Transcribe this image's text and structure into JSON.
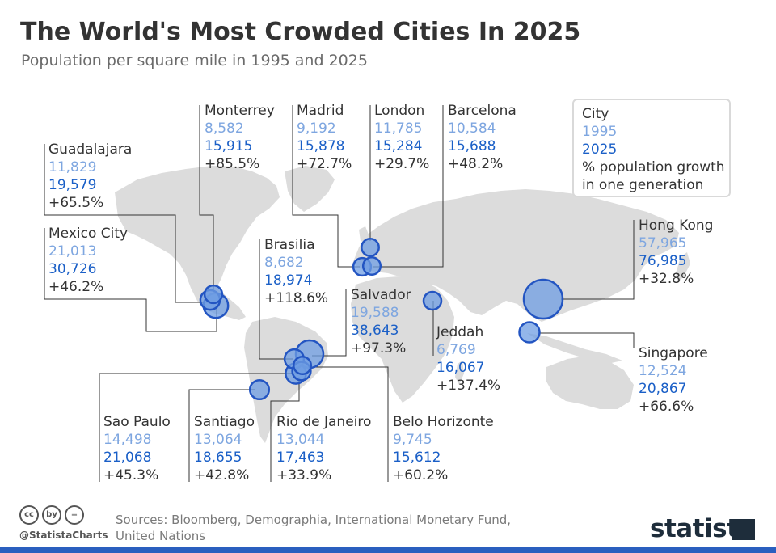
{
  "title": "The World's Most Crowded Cities In 2025",
  "subtitle": "Population per square mile in 1995 and 2025",
  "legend": {
    "city": "City",
    "y1995": "1995",
    "y2025": "2025",
    "growth_line1": "% population growth",
    "growth_line2": "in one generation"
  },
  "colors": {
    "light_blue": "#7ea6e0",
    "dark_blue": "#1a5fc7",
    "bubble_fill": "#6f9de3",
    "bubble_stroke": "#2355c2",
    "map": "#dcdcdc"
  },
  "chart_data": {
    "type": "scatter",
    "title": "The World's Most Crowded Cities In 2025",
    "subtitle": "Population per square mile in 1995 and 2025",
    "series": [
      {
        "name": "1995",
        "unit": "people per square mile"
      },
      {
        "name": "2025",
        "unit": "people per square mile"
      },
      {
        "name": "% population growth in one generation"
      }
    ],
    "cities": [
      {
        "name": "Guadalajara",
        "y1995": "11,829",
        "y2025": "19,579",
        "growth": "+65.5%"
      },
      {
        "name": "Monterrey",
        "y1995": "8,582",
        "y2025": "15,915",
        "growth": "+85.5%"
      },
      {
        "name": "Madrid",
        "y1995": "9,192",
        "y2025": "15,878",
        "growth": "+72.7%"
      },
      {
        "name": "London",
        "y1995": "11,785",
        "y2025": "15,284",
        "growth": "+29.7%"
      },
      {
        "name": "Barcelona",
        "y1995": "10,584",
        "y2025": "15,688",
        "growth": "+48.2%"
      },
      {
        "name": "Hong Kong",
        "y1995": "57,965",
        "y2025": "76,985",
        "growth": "+32.8%"
      },
      {
        "name": "Mexico City",
        "y1995": "21,013",
        "y2025": "30,726",
        "growth": "+46.2%"
      },
      {
        "name": "Brasilia",
        "y1995": "8,682",
        "y2025": "18,974",
        "growth": "+118.6%"
      },
      {
        "name": "Salvador",
        "y1995": "19,588",
        "y2025": "38,643",
        "growth": "+97.3%"
      },
      {
        "name": "Jeddah",
        "y1995": "6,769",
        "y2025": "16,067",
        "growth": "+137.4%"
      },
      {
        "name": "Singapore",
        "y1995": "12,524",
        "y2025": "20,867",
        "growth": "+66.6%"
      },
      {
        "name": "Sao Paulo",
        "y1995": "14,498",
        "y2025": "21,068",
        "growth": "+45.3%"
      },
      {
        "name": "Santiago",
        "y1995": "13,064",
        "y2025": "18,655",
        "growth": "+42.8%"
      },
      {
        "name": "Rio de Janeiro",
        "y1995": "13,044",
        "y2025": "17,463",
        "growth": "+33.9%"
      },
      {
        "name": "Belo Horizonte",
        "y1995": "9,745",
        "y2025": "15,612",
        "growth": "+60.2%"
      }
    ]
  },
  "footer": {
    "license_icons": [
      "cc",
      "by",
      "="
    ],
    "handle": "@StatistaCharts",
    "sources": "Sources: Bloomberg, Demographia, International Monetary Fund, United Nations",
    "brand": "statista"
  }
}
